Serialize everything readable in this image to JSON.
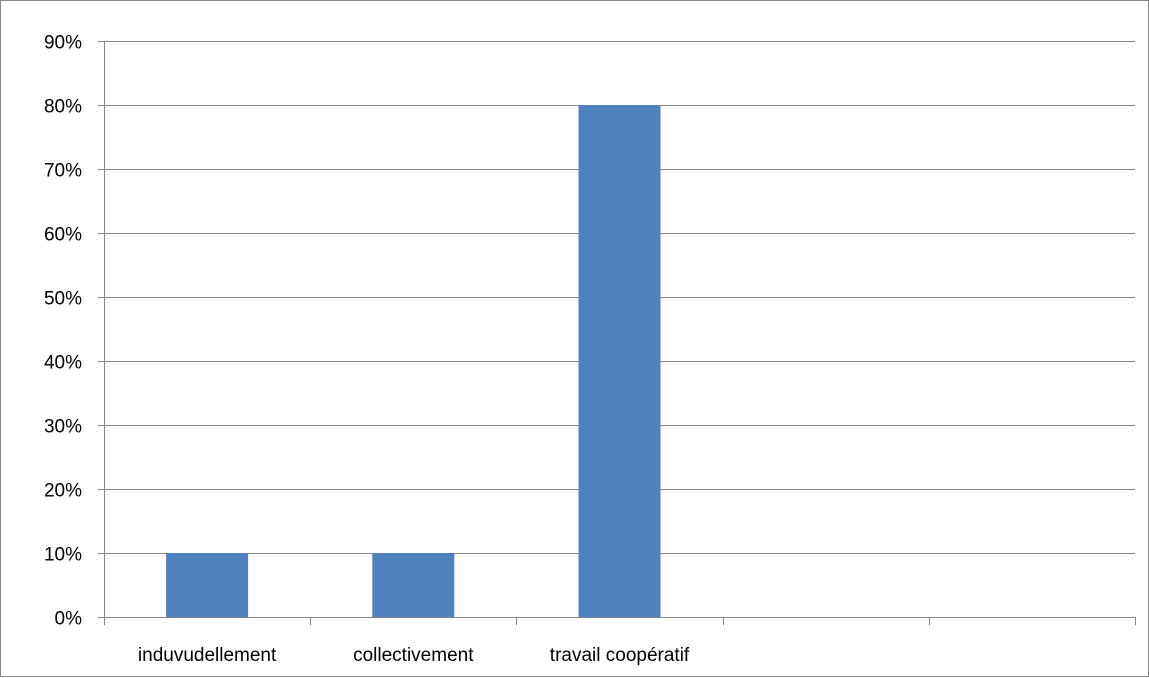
{
  "chart_data": {
    "type": "bar",
    "title": "",
    "xlabel": "",
    "ylabel": "",
    "categories": [
      "induvudellement",
      "collectivement",
      "travail coopératif",
      "",
      ""
    ],
    "values": [
      0.1,
      0.1,
      0.8,
      null,
      null
    ],
    "ylim": [
      0,
      0.9
    ],
    "yticks": [
      0,
      0.1,
      0.2,
      0.3,
      0.4,
      0.5,
      0.6,
      0.7,
      0.8,
      0.9
    ],
    "ytick_labels": [
      "0%",
      "10%",
      "20%",
      "30%",
      "40%",
      "50%",
      "60%",
      "70%",
      "80%",
      "90%"
    ],
    "grid": "horizontal",
    "legend": "none",
    "colors": {
      "bar": "#4f81bd",
      "grid": "#868686",
      "axis": "#868686",
      "text": "#000000",
      "border": "#878787"
    }
  }
}
